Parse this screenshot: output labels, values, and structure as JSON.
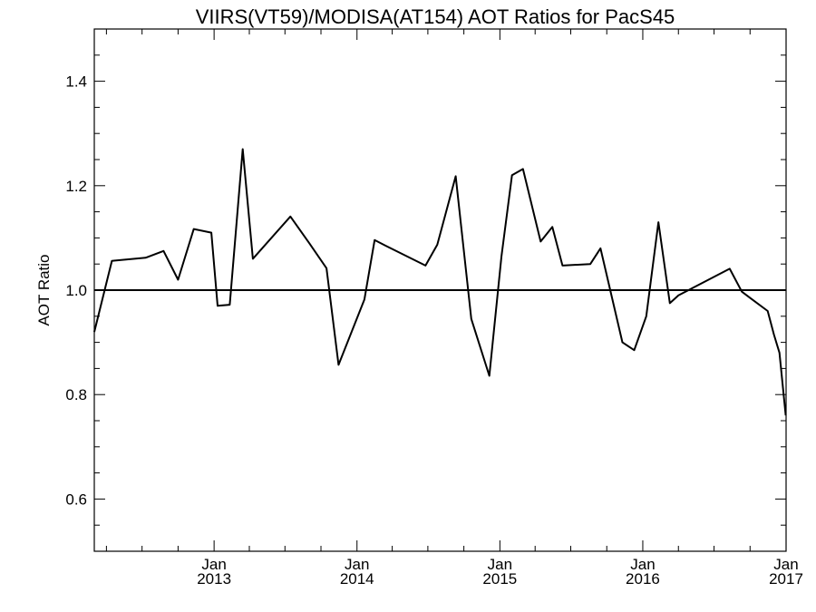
{
  "chart_data": {
    "type": "line",
    "title": "VIIRS(VT59)/MODISA(AT154)  AOT Ratios for PacS45",
    "xlabel": "",
    "ylabel": "AOT Ratio",
    "xlim": [
      "2012-03-01",
      "2017-01-01"
    ],
    "ylim": [
      0.5,
      1.5
    ],
    "y_ticks": [
      0.6,
      0.8,
      1.0,
      1.2,
      1.4
    ],
    "y_tick_labels": [
      "0.6",
      "0.8",
      "1.0",
      "1.2",
      "1.4"
    ],
    "x_ticks": [
      {
        "date": "2013-01-01",
        "month": "Jan",
        "year": "2013"
      },
      {
        "date": "2014-01-01",
        "month": "Jan",
        "year": "2014"
      },
      {
        "date": "2015-01-01",
        "month": "Jan",
        "year": "2015"
      },
      {
        "date": "2016-01-01",
        "month": "Jan",
        "year": "2016"
      },
      {
        "date": "2017-01-01",
        "month": "Jan",
        "year": "2017"
      }
    ],
    "reference_line": {
      "y": 1.0
    },
    "grid": false,
    "series": [
      {
        "x": [
          "2012-03-01",
          "2012-04-15",
          "2012-07-10",
          "2012-08-25",
          "2012-10-01",
          "2012-11-10",
          "2012-12-25",
          "2013-01-10",
          "2013-02-10",
          "2013-03-15",
          "2013-04-10",
          "2013-07-15",
          "2013-09-01",
          "2013-10-15",
          "2013-11-15",
          "2014-01-20",
          "2014-02-15",
          "2014-03-15",
          "2014-06-25",
          "2014-07-25",
          "2014-09-10",
          "2014-10-20",
          "2014-12-05",
          "2015-01-05",
          "2015-02-01",
          "2015-03-01",
          "2015-04-15",
          "2015-05-15",
          "2015-06-10",
          "2015-08-20",
          "2015-09-15",
          "2015-11-10",
          "2015-12-10",
          "2016-01-10",
          "2016-02-10",
          "2016-03-10",
          "2016-04-01",
          "2016-08-10",
          "2016-09-10",
          "2016-10-01",
          "2016-11-15",
          "2016-12-01",
          "2016-12-15",
          "2016-12-31"
        ],
        "values": [
          0.92,
          1.056,
          1.062,
          1.075,
          1.02,
          1.117,
          1.11,
          0.97,
          0.972,
          1.27,
          1.06,
          1.141,
          1.09,
          1.042,
          0.857,
          0.982,
          1.096,
          1.085,
          1.047,
          1.087,
          1.218,
          0.945,
          0.836,
          1.065,
          1.22,
          1.232,
          1.093,
          1.121,
          1.047,
          1.05,
          1.08,
          0.9,
          0.885,
          0.95,
          1.13,
          0.975,
          0.99,
          1.041,
          0.997,
          0.985,
          0.96,
          0.915,
          0.88,
          0.76
        ],
        "color": "#000000"
      }
    ]
  }
}
